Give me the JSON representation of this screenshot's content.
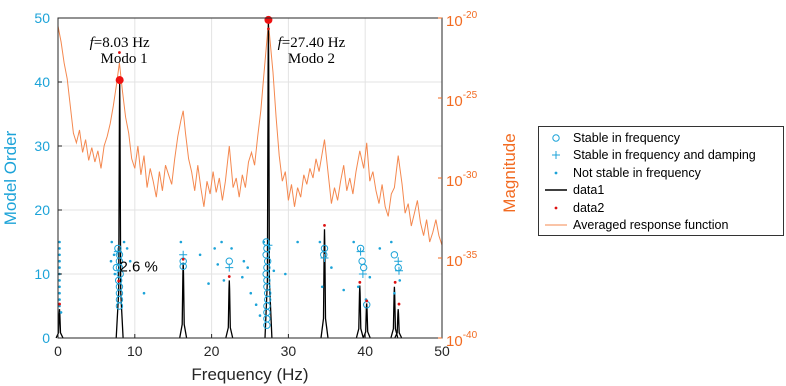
{
  "chart_data": {
    "type": "line",
    "xlabel": "Frequency (Hz)",
    "ylabel_left": "Model Order",
    "ylabel_right": "Magnitude",
    "xlim": [
      0,
      50
    ],
    "ylim_left": [
      0,
      50
    ],
    "ylim_right_log10": [
      -40,
      -20
    ],
    "x_ticks": [
      "0",
      "10",
      "20",
      "30",
      "40",
      "50"
    ],
    "y_left_ticks": [
      "0",
      "10",
      "20",
      "30",
      "40",
      "50"
    ],
    "y_right_ticks": [
      {
        "base": "10",
        "exp": "-40"
      },
      {
        "base": "10",
        "exp": "-35"
      },
      {
        "base": "10",
        "exp": "-30"
      },
      {
        "base": "10",
        "exp": "-25"
      },
      {
        "base": "10",
        "exp": "-20"
      }
    ],
    "grid": true,
    "colors": {
      "stable_freq": "#1ca3d8",
      "right_axis": "#f26b21",
      "response": "#f4884f",
      "peak_marker": "#ee1111",
      "data1": "#000000",
      "data2": "#dd1111"
    },
    "annotations": [
      {
        "italic": "f",
        "rest": "=8.03 Hz",
        "x": 8.03,
        "y": 45.5
      },
      {
        "italic": "",
        "rest": "Modo 1",
        "x": 8.6,
        "y": 43.0
      },
      {
        "italic": "f",
        "rest": "=27.40 Hz",
        "x": 33.0,
        "y": 45.5
      },
      {
        "italic": "",
        "rest": "Modo 2",
        "x": 33.0,
        "y": 43.0
      },
      {
        "italic": "",
        "rest": "2.6 %",
        "x": 10.5,
        "y": 10.4
      }
    ],
    "highlight_points": [
      {
        "x": 8.03,
        "y": 40.3
      },
      {
        "x": 27.4,
        "y": 49.7
      }
    ],
    "stable_in_frequency": [
      [
        8.0,
        13
      ],
      [
        8.0,
        12
      ],
      [
        7.6,
        11
      ],
      [
        8.0,
        11
      ],
      [
        8.1,
        10
      ],
      [
        7.9,
        9
      ],
      [
        8.0,
        8
      ],
      [
        8.0,
        7
      ],
      [
        8.0,
        6
      ],
      [
        8.0,
        5
      ],
      [
        7.8,
        14
      ],
      [
        16.3,
        12
      ],
      [
        16.3,
        11.2
      ],
      [
        22.3,
        12
      ],
      [
        27.1,
        15
      ],
      [
        27.2,
        14
      ],
      [
        27.1,
        13
      ],
      [
        27.3,
        12
      ],
      [
        27.2,
        11
      ],
      [
        27.1,
        10
      ],
      [
        27.2,
        9
      ],
      [
        27.2,
        8
      ],
      [
        27.3,
        7
      ],
      [
        27.3,
        6
      ],
      [
        27.2,
        5
      ],
      [
        27.2,
        4
      ],
      [
        27.2,
        3
      ],
      [
        27.2,
        2
      ],
      [
        34.7,
        14
      ],
      [
        34.6,
        13
      ],
      [
        39.4,
        14
      ],
      [
        39.6,
        12
      ],
      [
        39.8,
        11
      ],
      [
        40.2,
        5.2
      ],
      [
        43.8,
        13
      ],
      [
        44.3,
        11
      ]
    ],
    "stable_in_frequency_and_damping": [
      [
        7.8,
        13.5
      ],
      [
        16.3,
        13
      ],
      [
        22.3,
        11
      ],
      [
        27.4,
        14.5
      ],
      [
        34.7,
        12.5
      ],
      [
        39.4,
        13.5
      ],
      [
        39.7,
        10
      ],
      [
        44.3,
        12
      ],
      [
        44.4,
        10.5
      ]
    ],
    "not_stable_in_frequency": [
      [
        0.2,
        15
      ],
      [
        0.2,
        14
      ],
      [
        0.2,
        13
      ],
      [
        0.2,
        12
      ],
      [
        0.2,
        11
      ],
      [
        0.2,
        10
      ],
      [
        0.2,
        9
      ],
      [
        0.2,
        8
      ],
      [
        0.2,
        7
      ],
      [
        0.2,
        6
      ],
      [
        0.2,
        5
      ],
      [
        0.4,
        4
      ],
      [
        7.0,
        15
      ],
      [
        7.3,
        13
      ],
      [
        6.9,
        12
      ],
      [
        7.4,
        10
      ],
      [
        8.6,
        15
      ],
      [
        9.0,
        14
      ],
      [
        9.4,
        12
      ],
      [
        11.2,
        7
      ],
      [
        16.0,
        15
      ],
      [
        18.5,
        13
      ],
      [
        19.6,
        8.5
      ],
      [
        20.4,
        14
      ],
      [
        20.8,
        11.5
      ],
      [
        21.3,
        15
      ],
      [
        21.6,
        9
      ],
      [
        22.6,
        14
      ],
      [
        24.2,
        12
      ],
      [
        24.7,
        11
      ],
      [
        25.1,
        7
      ],
      [
        25.8,
        5.2
      ],
      [
        26.3,
        3.5
      ],
      [
        26.8,
        15
      ],
      [
        28.1,
        10.5
      ],
      [
        29.6,
        10
      ],
      [
        31.2,
        15
      ],
      [
        34.1,
        15
      ],
      [
        34.4,
        8
      ],
      [
        35.6,
        11
      ],
      [
        37.2,
        7.5
      ],
      [
        38.5,
        15
      ],
      [
        39.1,
        8
      ],
      [
        40.1,
        6
      ],
      [
        40.6,
        9.5
      ],
      [
        41.9,
        14
      ],
      [
        43.4,
        15
      ],
      [
        43.8,
        7
      ],
      [
        44.5,
        9
      ],
      [
        24.0,
        9.5
      ]
    ],
    "data1_peaks": [
      {
        "x": 0.2,
        "h": 4.5
      },
      {
        "x": 8.03,
        "h": 40.3
      },
      {
        "x": 16.3,
        "h": 11.8
      },
      {
        "x": 22.3,
        "h": 9.0
      },
      {
        "x": 27.4,
        "h": 49.7
      },
      {
        "x": 34.7,
        "h": 17.0
      },
      {
        "x": 39.3,
        "h": 8.2
      },
      {
        "x": 40.2,
        "h": 5.4
      },
      {
        "x": 43.8,
        "h": 8.0
      },
      {
        "x": 44.3,
        "h": 4.5
      }
    ],
    "data2": [
      [
        0.2,
        5.3
      ],
      [
        8.0,
        44.6
      ],
      [
        8.03,
        40.7
      ],
      [
        7.9,
        8.9
      ],
      [
        16.3,
        12.3
      ],
      [
        22.3,
        9.6
      ],
      [
        27.4,
        48.3
      ],
      [
        34.7,
        17.6
      ],
      [
        39.3,
        8.7
      ],
      [
        40.2,
        5.8
      ],
      [
        43.9,
        8.7
      ],
      [
        44.4,
        5.3
      ]
    ],
    "averaged_response_log10": {
      "x": [
        0,
        0.4,
        0.8,
        1.2,
        1.6,
        2.0,
        2.4,
        2.8,
        3.2,
        3.6,
        4.0,
        4.4,
        4.8,
        5.2,
        5.6,
        6.0,
        6.4,
        6.8,
        7.2,
        7.6,
        8.0,
        8.4,
        8.8,
        9.2,
        9.6,
        10.0,
        10.4,
        10.8,
        11.2,
        11.6,
        12.0,
        12.4,
        12.8,
        13.2,
        13.6,
        14.0,
        14.4,
        14.8,
        15.2,
        15.6,
        16.0,
        16.3,
        16.6,
        17.0,
        17.4,
        17.8,
        18.2,
        18.6,
        19.0,
        19.4,
        19.8,
        20.2,
        20.6,
        21.0,
        21.4,
        21.8,
        22.3,
        22.8,
        23.2,
        23.6,
        24.0,
        24.4,
        24.8,
        25.2,
        25.6,
        26.0,
        26.4,
        26.8,
        27.4,
        28.0,
        28.4,
        28.8,
        29.2,
        29.6,
        30.0,
        30.4,
        30.8,
        31.2,
        31.6,
        32.0,
        32.4,
        32.8,
        33.2,
        33.6,
        34.0,
        34.7,
        35.2,
        35.6,
        36.0,
        36.4,
        36.8,
        37.2,
        37.6,
        38.0,
        38.4,
        38.8,
        39.3,
        39.8,
        40.2,
        40.6,
        41.0,
        41.4,
        41.8,
        42.2,
        42.6,
        43.0,
        43.4,
        43.8,
        44.3,
        44.8,
        45.2,
        45.6,
        46.0,
        46.4,
        46.8,
        47.2,
        47.6,
        48.0,
        48.4,
        48.8,
        49.2,
        49.6,
        50.0
      ],
      "y": [
        -20.5,
        -21.5,
        -22.8,
        -23.8,
        -25.5,
        -27.2,
        -27.8,
        -27.0,
        -28.4,
        -27.6,
        -28.9,
        -28.1,
        -29.0,
        -28.3,
        -29.4,
        -28.0,
        -27.4,
        -26.6,
        -25.5,
        -24.2,
        -22.8,
        -24.6,
        -26.2,
        -27.2,
        -28.8,
        -29.4,
        -28.0,
        -29.8,
        -28.6,
        -30.6,
        -29.4,
        -30.2,
        -31.2,
        -29.6,
        -30.8,
        -29.2,
        -29.8,
        -30.4,
        -28.8,
        -27.4,
        -26.4,
        -25.8,
        -27.2,
        -28.8,
        -29.6,
        -30.8,
        -29.2,
        -30.6,
        -31.8,
        -30.2,
        -31.0,
        -29.6,
        -30.9,
        -30.0,
        -31.4,
        -30.2,
        -28.0,
        -30.6,
        -30.0,
        -31.2,
        -29.8,
        -30.6,
        -29.0,
        -28.4,
        -29.2,
        -27.4,
        -25.8,
        -23.6,
        -20.3,
        -23.4,
        -26.2,
        -28.6,
        -30.2,
        -29.6,
        -31.4,
        -30.4,
        -31.8,
        -30.6,
        -31.2,
        -29.8,
        -30.4,
        -29.4,
        -30.0,
        -28.8,
        -29.6,
        -27.6,
        -29.8,
        -31.6,
        -30.6,
        -31.4,
        -30.2,
        -29.2,
        -30.8,
        -30.0,
        -31.0,
        -29.6,
        -28.3,
        -29.4,
        -27.8,
        -30.2,
        -29.6,
        -30.8,
        -31.6,
        -30.4,
        -31.8,
        -32.4,
        -31.0,
        -30.6,
        -28.6,
        -30.4,
        -32.2,
        -31.6,
        -33.0,
        -32.2,
        -31.4,
        -32.8,
        -33.6,
        -32.6,
        -34.0,
        -33.4,
        -32.6,
        -33.6,
        -34.2
      ]
    },
    "legend": {
      "position": "right-outside",
      "entries": [
        {
          "key": "stable_freq",
          "symbol": "circle",
          "label": "Stable in frequency"
        },
        {
          "key": "stable_freq_damp",
          "symbol": "plus",
          "label": "Stable in frequency and damping"
        },
        {
          "key": "not_stable",
          "symbol": "dot",
          "label": "Not stable in frequency"
        },
        {
          "key": "data1",
          "symbol": "line",
          "label": "data1"
        },
        {
          "key": "data2",
          "symbol": "reddot",
          "label": "data2"
        },
        {
          "key": "response",
          "symbol": "orangeline",
          "label": "Averaged response function"
        }
      ]
    }
  }
}
